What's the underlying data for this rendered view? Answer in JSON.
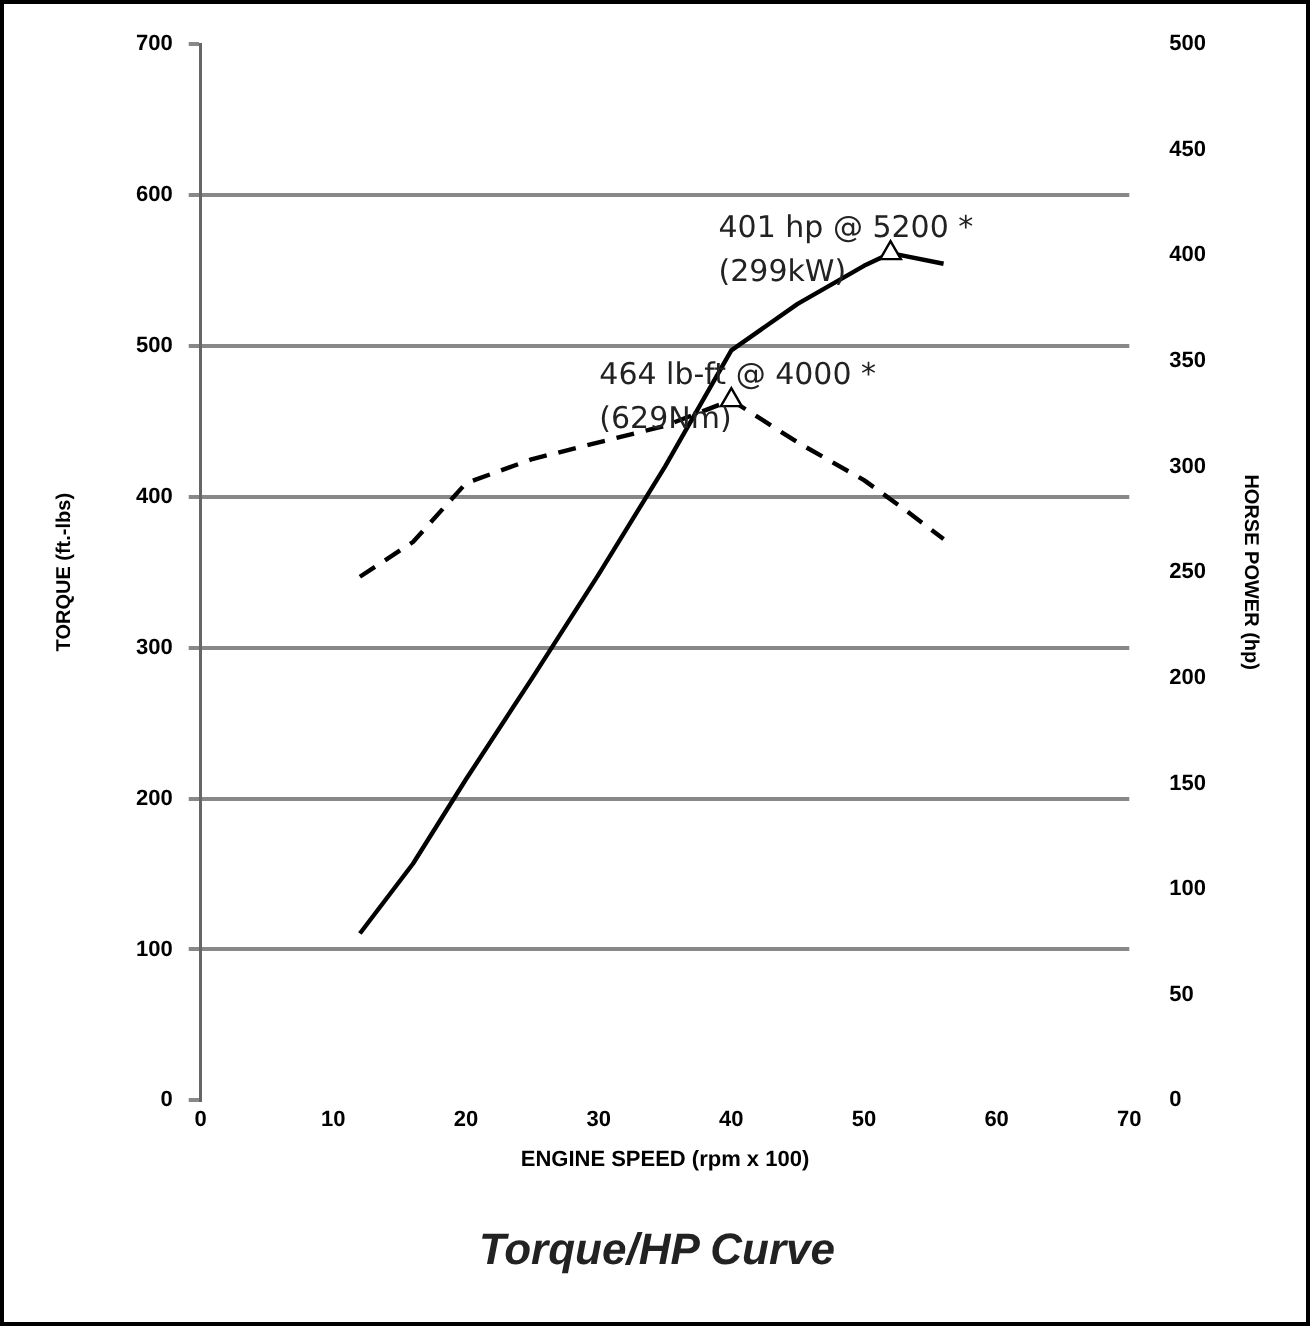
{
  "chart_data": {
    "type": "line",
    "title": "Torque/HP Curve",
    "xlabel": "ENGINE SPEED (rpm x 100)",
    "ylabel": "TORQUE (ft.-lbs)",
    "y2label": "HORSE POWER (hp)",
    "xlim": [
      0,
      70
    ],
    "xticks": [
      0,
      10,
      20,
      30,
      40,
      50,
      60,
      70
    ],
    "ylim": [
      0,
      700
    ],
    "yticks": [
      0,
      100,
      200,
      300,
      400,
      500,
      600,
      700
    ],
    "y2lim": [
      0,
      500
    ],
    "y2ticks": [
      0,
      50,
      100,
      150,
      200,
      250,
      300,
      350,
      400,
      450,
      500
    ],
    "series": [
      {
        "color": "#000000",
        "axis": "y2",
        "line_style": "solid",
        "x": [
          12,
          16,
          20,
          25,
          30,
          35,
          40,
          45,
          50,
          52,
          56
        ],
        "values": [
          79,
          112,
          152,
          200,
          249,
          300,
          355,
          377,
          395,
          401,
          396
        ]
      },
      {
        "color": "#000000",
        "axis": "y",
        "line_style": "dashed",
        "x": [
          12,
          16,
          20,
          25,
          30,
          35,
          40,
          45,
          50,
          53,
          56
        ],
        "values": [
          347,
          370,
          409,
          425,
          436,
          447,
          464,
          436,
          411,
          392,
          372
        ]
      }
    ],
    "annotations": [
      "401 hp @ 5200 *\n(299kW)",
      "464 lb-ft @ 4000 *\n(629Nm)"
    ],
    "grid": "y",
    "legend": false
  }
}
